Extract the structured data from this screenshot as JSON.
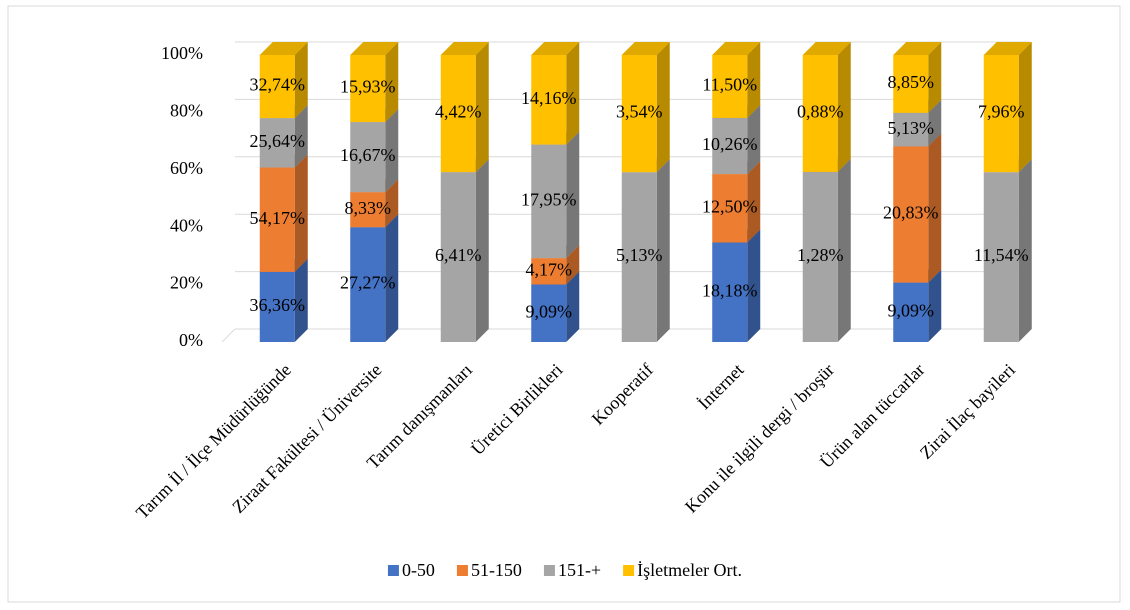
{
  "chart_data": {
    "type": "bar",
    "stacking": "percent",
    "categories": [
      "Tarım İl / İlçe Müdürlüğünde",
      "Ziraat Fakültesi / Üniversite",
      "Tarım danışmanları",
      "Üretici Birlikleri",
      "Kooperatif",
      "İnternet",
      "Konu ile ilgili dergi / broşür",
      "Ürün alan tüccarlar",
      "Zirai İlaç bayileri"
    ],
    "series": [
      {
        "name": "0-50",
        "color": "#4472c4",
        "values": [
          36.36,
          27.27,
          null,
          9.09,
          null,
          18.18,
          null,
          9.09,
          null
        ],
        "value_labels": [
          "36,36%",
          "27,27%",
          null,
          "9,09%",
          null,
          "18,18%",
          null,
          "9,09%",
          null
        ]
      },
      {
        "name": "51-150",
        "color": "#ed7d31",
        "values": [
          54.17,
          8.33,
          null,
          4.17,
          null,
          12.5,
          null,
          20.83,
          null
        ],
        "value_labels": [
          "54,17%",
          "8,33%",
          null,
          "4,17%",
          null,
          "12,50%",
          null,
          "20,83%",
          null
        ]
      },
      {
        "name": "151-+",
        "color": "#a5a5a5",
        "values": [
          25.64,
          16.67,
          6.41,
          17.95,
          5.13,
          10.26,
          1.28,
          5.13,
          11.54
        ],
        "value_labels": [
          "25,64%",
          "16,67%",
          "6,41%",
          "17,95%",
          "5,13%",
          "10,26%",
          "1,28%",
          "5,13%",
          "11,54%"
        ]
      },
      {
        "name": "İşletmeler Ort.",
        "color": "#ffc000",
        "values": [
          32.74,
          15.93,
          4.42,
          14.16,
          3.54,
          11.5,
          0.88,
          8.85,
          7.96
        ],
        "value_labels": [
          "32,74%",
          "15,93%",
          "4,42%",
          "14,16%",
          "3,54%",
          "11,50%",
          "0,88%",
          "8,85%",
          "7,96%"
        ]
      }
    ],
    "ylim": [
      0,
      100
    ],
    "yticks": [
      {
        "value": 0,
        "label": "0%"
      },
      {
        "value": 20,
        "label": "20%"
      },
      {
        "value": 40,
        "label": "40%"
      },
      {
        "value": 60,
        "label": "60%"
      },
      {
        "value": 80,
        "label": "80%"
      },
      {
        "value": 100,
        "label": "100%"
      }
    ],
    "grid": true,
    "legend": "bottom"
  }
}
